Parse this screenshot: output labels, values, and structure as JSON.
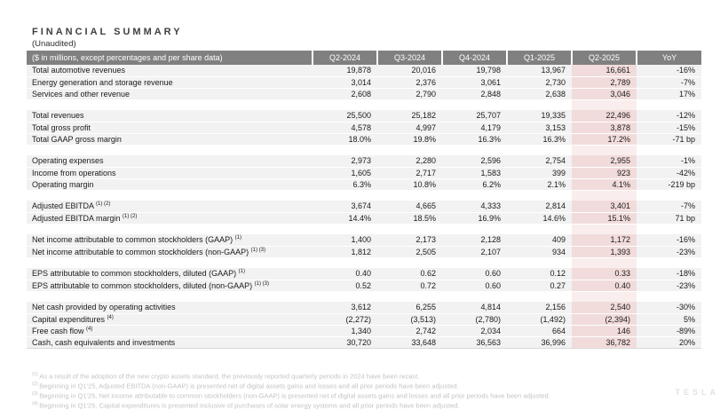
{
  "page": {
    "title": "FINANCIAL SUMMARY",
    "subtitle": "(Unaudited)",
    "watermark": "TESLA"
  },
  "colors": {
    "header_bg": "#808080",
    "header_text": "#ffffff",
    "row_bg": "#f2f2f2",
    "highlight_bg": "#f1dcdb",
    "highlight_gap_bg": "#f9eeed",
    "footnote_text": "#c4c4c4"
  },
  "table": {
    "unit_note": "($ in millions, except percentages and per share data)",
    "columns": [
      "Q2-2024",
      "Q3-2024",
      "Q4-2024",
      "Q1-2025",
      "Q2-2025",
      "YoY"
    ],
    "highlight_column": "Q2-2025",
    "sections": [
      {
        "rows": [
          {
            "label": "Total automotive revenues",
            "sup": "",
            "values": [
              "19,878",
              "20,016",
              "19,798",
              "13,967",
              "16,661",
              "-16%"
            ]
          },
          {
            "label": "Energy generation and storage revenue",
            "sup": "",
            "values": [
              "3,014",
              "2,376",
              "3,061",
              "2,730",
              "2,789",
              "-7%"
            ]
          },
          {
            "label": "Services and other revenue",
            "sup": "",
            "values": [
              "2,608",
              "2,790",
              "2,848",
              "2,638",
              "3,046",
              "17%"
            ]
          }
        ]
      },
      {
        "rows": [
          {
            "label": "Total revenues",
            "sup": "",
            "values": [
              "25,500",
              "25,182",
              "25,707",
              "19,335",
              "22,496",
              "-12%"
            ]
          },
          {
            "label": "Total gross profit",
            "sup": "",
            "values": [
              "4,578",
              "4,997",
              "4,179",
              "3,153",
              "3,878",
              "-15%"
            ]
          },
          {
            "label": "Total GAAP gross margin",
            "sup": "",
            "values": [
              "18.0%",
              "19.8%",
              "16.3%",
              "16.3%",
              "17.2%",
              "-71 bp"
            ]
          }
        ]
      },
      {
        "rows": [
          {
            "label": "Operating expenses",
            "sup": "",
            "values": [
              "2,973",
              "2,280",
              "2,596",
              "2,754",
              "2,955",
              "-1%"
            ]
          },
          {
            "label": "Income from operations",
            "sup": "",
            "values": [
              "1,605",
              "2,717",
              "1,583",
              "399",
              "923",
              "-42%"
            ]
          },
          {
            "label": "Operating margin",
            "sup": "",
            "values": [
              "6.3%",
              "10.8%",
              "6.2%",
              "2.1%",
              "4.1%",
              "-219 bp"
            ]
          }
        ]
      },
      {
        "rows": [
          {
            "label": "Adjusted EBITDA",
            "sup": "(1) (2)",
            "values": [
              "3,674",
              "4,665",
              "4,333",
              "2,814",
              "3,401",
              "-7%"
            ]
          },
          {
            "label": "Adjusted EBITDA margin",
            "sup": "(1) (2)",
            "values": [
              "14.4%",
              "18.5%",
              "16.9%",
              "14.6%",
              "15.1%",
              "71 bp"
            ]
          }
        ]
      },
      {
        "rows": [
          {
            "label": "Net income attributable to common stockholders (GAAP)",
            "sup": "(1)",
            "values": [
              "1,400",
              "2,173",
              "2,128",
              "409",
              "1,172",
              "-16%"
            ]
          },
          {
            "label": "Net income attributable to common stockholders (non-GAAP)",
            "sup": "(1) (3)",
            "values": [
              "1,812",
              "2,505",
              "2,107",
              "934",
              "1,393",
              "-23%"
            ]
          }
        ]
      },
      {
        "rows": [
          {
            "label": "EPS attributable to common stockholders, diluted (GAAP)",
            "sup": "(1)",
            "values": [
              "0.40",
              "0.62",
              "0.60",
              "0.12",
              "0.33",
              "-18%"
            ]
          },
          {
            "label": "EPS attributable to common stockholders, diluted (non-GAAP)",
            "sup": "(1) (3)",
            "values": [
              "0.52",
              "0.72",
              "0.60",
              "0.27",
              "0.40",
              "-23%"
            ]
          }
        ]
      },
      {
        "rows": [
          {
            "label": "Net cash provided by operating activities",
            "sup": "",
            "values": [
              "3,612",
              "6,255",
              "4,814",
              "2,156",
              "2,540",
              "-30%"
            ]
          },
          {
            "label": "Capital expenditures",
            "sup": "(4)",
            "values": [
              "(2,272)",
              "(3,513)",
              "(2,780)",
              "(1,492)",
              "(2,394)",
              "5%"
            ]
          },
          {
            "label": "Free cash flow",
            "sup": "(4)",
            "values": [
              "1,340",
              "2,742",
              "2,034",
              "664",
              "146",
              "-89%"
            ]
          },
          {
            "label": "Cash, cash equivalents and investments",
            "sup": "",
            "values": [
              "30,720",
              "33,648",
              "36,563",
              "36,996",
              "36,782",
              "20%"
            ]
          }
        ]
      }
    ]
  },
  "footnotes": [
    {
      "mark": "(1)",
      "text": "As a result of the adoption of the new crypto assets standard, the previously reported quarterly periods in 2024 have been recast."
    },
    {
      "mark": "(2)",
      "text": "Beginning in Q1'25, Adjusted EBITDA (non-GAAP) is presented net of digital assets gains and losses and all prior periods have been adjusted."
    },
    {
      "mark": "(3)",
      "text": "Beginning in Q1'25, Net income attributable to common stockholders (non-GAAP) is presented net of digital assets gains and losses and all prior periods have been adjusted."
    },
    {
      "mark": "(4)",
      "text": "Beginning in Q1'25, Capital expenditures is presented inclusive of purchases of solar energy systems and all prior periods have been adjusted."
    }
  ]
}
